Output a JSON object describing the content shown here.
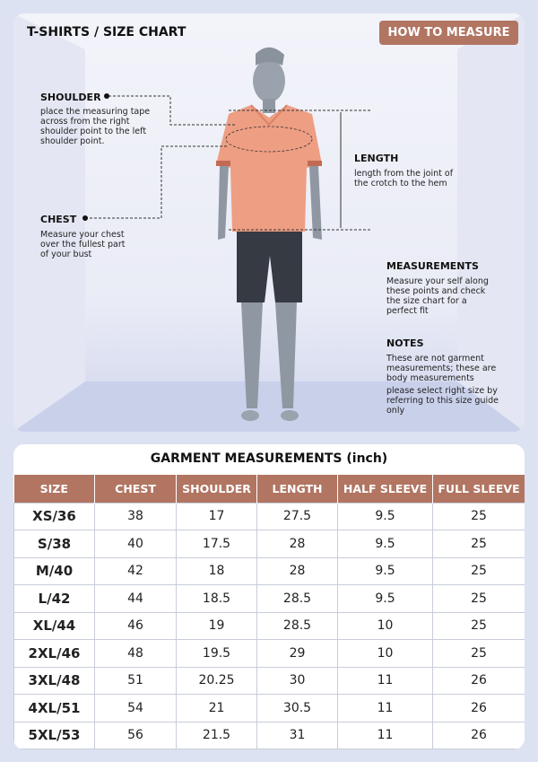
{
  "header": {
    "title": "T-SHIRTS / SIZE CHART",
    "button": "HOW TO MEASURE"
  },
  "annotations": {
    "shoulder": {
      "title": "SHOULDER",
      "text": "place the measuring tape across from the right shoulder point to the left shoulder point."
    },
    "chest": {
      "title": "CHEST",
      "text": "Measure your chest over the fullest part of your bust"
    },
    "length": {
      "title": "LENGTH",
      "text": "length from the joint of the crotch to the hem"
    },
    "measurements": {
      "title": "MEASUREMENTS",
      "text": "Measure your self along these points and check the size chart for a perfect fit"
    },
    "notes": {
      "title": "NOTES",
      "text": [
        "These are not garment measurements; these are body measurements",
        "please select right size by referring to this size guide only"
      ]
    }
  },
  "table": {
    "title": "GARMENT MEASUREMENTS (inch)",
    "columns": [
      "SIZE",
      "CHEST",
      "SHOULDER",
      "LENGTH",
      "HALF SLEEVE",
      "FULL SLEEVE"
    ],
    "rows": [
      [
        "XS/36",
        38,
        17,
        27.5,
        9.5,
        25
      ],
      [
        "S/38",
        40,
        17.5,
        28,
        9.5,
        25
      ],
      [
        "M/40",
        42,
        18,
        28,
        9.5,
        25
      ],
      [
        "L/42",
        44,
        18.5,
        28.5,
        9.5,
        25
      ],
      [
        "XL/44",
        46,
        19,
        28.5,
        10,
        25
      ],
      [
        "2XL/46",
        48,
        19.5,
        29,
        10,
        25
      ],
      [
        "3XL/48",
        51,
        20.25,
        30,
        11,
        26
      ],
      [
        "4XL/51",
        54,
        21,
        30.5,
        11,
        26
      ],
      [
        "5XL/53",
        56,
        21.5,
        31,
        11,
        26
      ]
    ]
  }
}
